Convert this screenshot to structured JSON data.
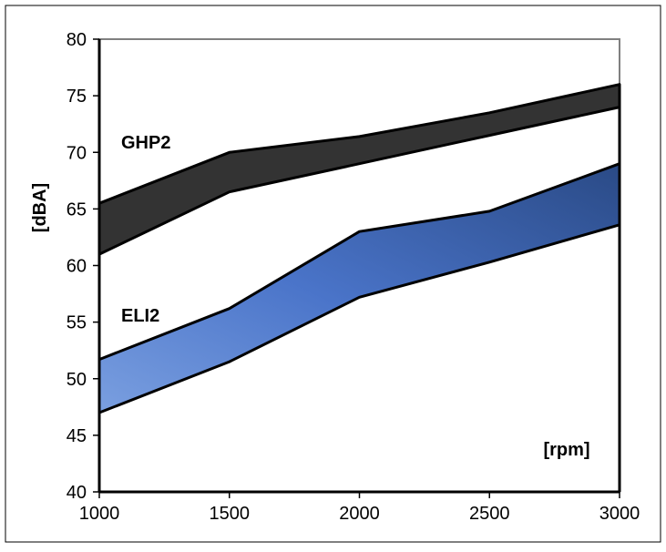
{
  "chart_data": {
    "type": "area",
    "title": "",
    "xlabel": "[rpm]",
    "ylabel": "[dBA]",
    "xlim": [
      1000,
      3000
    ],
    "ylim": [
      40,
      80
    ],
    "x_ticks": [
      1000,
      1500,
      2000,
      2500,
      3000
    ],
    "y_ticks": [
      40,
      45,
      50,
      55,
      60,
      65,
      70,
      75,
      80
    ],
    "grid": false,
    "x": [
      1000,
      1500,
      2000,
      2500,
      3000
    ],
    "series": [
      {
        "name": "GHP2",
        "upper": [
          65.5,
          70,
          71.4,
          73.5,
          76
        ],
        "lower": [
          61,
          66.5,
          69,
          71.5,
          74
        ],
        "color": "#333333"
      },
      {
        "name": "ELI2",
        "upper": [
          51.7,
          56.2,
          63,
          64.8,
          69
        ],
        "lower": [
          47,
          51.5,
          57.2,
          60.3,
          63.6
        ],
        "color_light": "#7a9fe0",
        "color_dark": "#2a4a86"
      }
    ]
  }
}
